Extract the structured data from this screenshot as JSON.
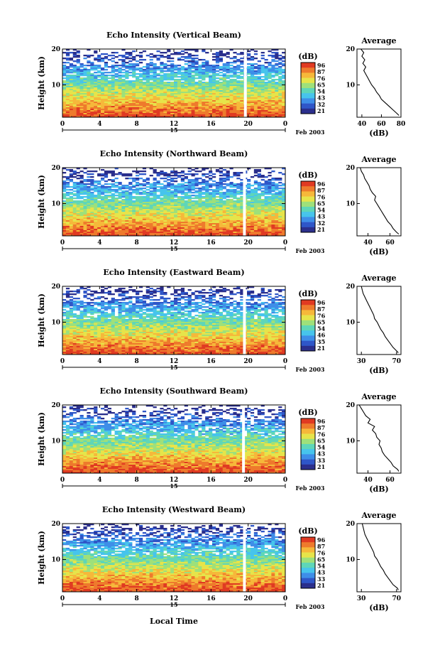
{
  "figure": {
    "date_label": "Feb 2003",
    "xlabel": "Local Time",
    "ylabel": "Height (km)",
    "average_title": "Average",
    "colorbar_unit": "(dB)",
    "day_label": "15"
  },
  "colorscale": [
    "#2a2e8c",
    "#2f56c8",
    "#3e8ee8",
    "#46c4ec",
    "#5fd6b8",
    "#9ee07a",
    "#e6e44a",
    "#f6b83a",
    "#ee7a2c",
    "#e03a22"
  ],
  "chart_data": [
    {
      "type": "heatmap",
      "title": "Echo Intensity (Vertical Beam)",
      "xlabel": "Local Time",
      "ylabel": "Height (km)",
      "x_ticks": [
        "0",
        "4",
        "8",
        "12",
        "16",
        "20",
        "0"
      ],
      "y_ticks": [
        "10",
        "20"
      ],
      "xlim": [
        0,
        24
      ],
      "ylim": [
        1,
        20
      ],
      "colorbar_ticks": [
        "96",
        "87",
        "76",
        "65",
        "54",
        "43",
        "32",
        "21"
      ],
      "colorbar_range": [
        21,
        96
      ],
      "gaps_hours": [
        19.7
      ],
      "average_profile": {
        "xlabel": "(dB)",
        "x_ticks": [
          "40",
          "60",
          "80"
        ],
        "xlim": [
          35,
          80
        ],
        "height_km": [
          1.5,
          2,
          3,
          4,
          5,
          6,
          7,
          8,
          9,
          10,
          11,
          12,
          13,
          14,
          15,
          16,
          17,
          18,
          19,
          20
        ],
        "value_db": [
          78,
          76,
          72,
          68,
          64,
          60,
          58,
          55,
          53,
          50,
          48,
          46,
          44,
          42,
          44,
          41,
          43,
          40,
          42,
          39
        ]
      }
    },
    {
      "type": "heatmap",
      "title": "Echo Intensity (Northward Beam)",
      "xlabel": "Local Time",
      "ylabel": "Height (km)",
      "x_ticks": [
        "0",
        "4",
        "8",
        "12",
        "16",
        "20",
        "0"
      ],
      "y_ticks": [
        "10",
        "20"
      ],
      "xlim": [
        0,
        24
      ],
      "ylim": [
        1,
        20
      ],
      "colorbar_ticks": [
        "96",
        "87",
        "76",
        "65",
        "54",
        "43",
        "32",
        "21"
      ],
      "colorbar_range": [
        21,
        96
      ],
      "gaps_hours": [
        19.6
      ],
      "average_profile": {
        "xlabel": "(dB)",
        "x_ticks": [
          "40",
          "60"
        ],
        "xlim": [
          30,
          70
        ],
        "height_km": [
          1.5,
          2,
          3,
          4,
          5,
          6,
          7,
          8,
          9,
          10,
          11,
          12,
          13,
          14,
          15,
          16,
          17,
          18,
          19,
          20
        ],
        "value_db": [
          68,
          66,
          63,
          61,
          58,
          56,
          54,
          52,
          50,
          48,
          46,
          47,
          44,
          42,
          41,
          39,
          37,
          36,
          34,
          33
        ]
      }
    },
    {
      "type": "heatmap",
      "title": "Echo Intensity (Eastward Beam)",
      "xlabel": "Local Time",
      "ylabel": "Height (km)",
      "x_ticks": [
        "0",
        "4",
        "8",
        "12",
        "16",
        "20",
        "0"
      ],
      "y_ticks": [
        "10",
        "20"
      ],
      "xlim": [
        0,
        24
      ],
      "ylim": [
        1,
        20
      ],
      "colorbar_ticks": [
        "96",
        "87",
        "76",
        "65",
        "54",
        "46",
        "35",
        "21"
      ],
      "colorbar_range": [
        21,
        96
      ],
      "gaps_hours": [
        19.6
      ],
      "average_profile": {
        "xlabel": "(dB)",
        "x_ticks": [
          "30",
          "70"
        ],
        "xlim": [
          25,
          75
        ],
        "height_km": [
          1.5,
          2,
          3,
          4,
          5,
          6,
          7,
          8,
          9,
          10,
          11,
          12,
          13,
          14,
          15,
          16,
          17,
          18,
          19,
          20
        ],
        "value_db": [
          72,
          70,
          66,
          63,
          60,
          57,
          55,
          52,
          50,
          48,
          45,
          44,
          42,
          40,
          38,
          36,
          34,
          32,
          31,
          30
        ]
      }
    },
    {
      "type": "heatmap",
      "title": "Echo Intensity (Southward Beam)",
      "xlabel": "Local Time",
      "ylabel": "Height (km)",
      "x_ticks": [
        "0",
        "4",
        "8",
        "12",
        "16",
        "20",
        "0"
      ],
      "y_ticks": [
        "10",
        "20"
      ],
      "xlim": [
        0,
        24
      ],
      "ylim": [
        1,
        20
      ],
      "colorbar_ticks": [
        "96",
        "87",
        "76",
        "65",
        "54",
        "43",
        "33",
        "21"
      ],
      "colorbar_range": [
        21,
        96
      ],
      "gaps_hours": [
        19.5
      ],
      "average_profile": {
        "xlabel": "(dB)",
        "x_ticks": [
          "40",
          "60"
        ],
        "xlim": [
          30,
          70
        ],
        "height_km": [
          1.5,
          2,
          3,
          4,
          5,
          6,
          7,
          8,
          9,
          10,
          11,
          12,
          13,
          14,
          15,
          16,
          17,
          18,
          19,
          20
        ],
        "value_db": [
          68,
          67,
          63,
          61,
          58,
          55,
          53,
          52,
          50,
          51,
          48,
          47,
          44,
          46,
          40,
          42,
          38,
          36,
          34,
          32
        ]
      }
    },
    {
      "type": "heatmap",
      "title": "Echo Intensity (Westward Beam)",
      "xlabel": "Local Time",
      "ylabel": "Height (km)",
      "x_ticks": [
        "0",
        "4",
        "8",
        "12",
        "16",
        "20",
        "0"
      ],
      "y_ticks": [
        "10",
        "20"
      ],
      "xlim": [
        0,
        24
      ],
      "ylim": [
        1,
        20
      ],
      "colorbar_ticks": [
        "96",
        "87",
        "76",
        "65",
        "54",
        "43",
        "33",
        "21"
      ],
      "colorbar_range": [
        21,
        96
      ],
      "gaps_hours": [
        19.6
      ],
      "average_profile": {
        "xlabel": "(dB)",
        "x_ticks": [
          "30",
          "70"
        ],
        "xlim": [
          25,
          75
        ],
        "height_km": [
          1.5,
          2,
          3,
          4,
          5,
          6,
          7,
          8,
          9,
          10,
          11,
          12,
          13,
          14,
          15,
          16,
          17,
          18,
          19,
          20
        ],
        "value_db": [
          72,
          71,
          66,
          63,
          60,
          57,
          55,
          52,
          50,
          48,
          45,
          44,
          42,
          40,
          38,
          36,
          34,
          33,
          32,
          31
        ]
      }
    }
  ]
}
